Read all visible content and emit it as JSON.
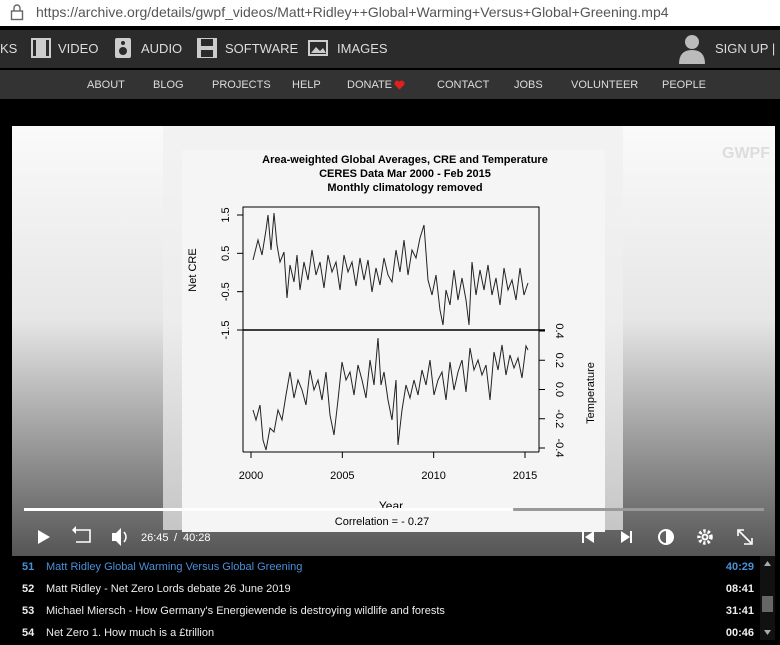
{
  "browser": {
    "url": "https://archive.org/details/gwpf_videos/Matt+Ridley++Global+Warming+Versus+Global+Greening.mp4"
  },
  "top_nav": {
    "items": [
      "KS",
      "VIDEO",
      "AUDIO",
      "SOFTWARE",
      "IMAGES"
    ],
    "sign_up": "SIGN UP |"
  },
  "sub_nav": {
    "items": [
      "ABOUT",
      "BLOG",
      "PROJECTS",
      "HELP",
      "DONATE",
      "CONTACT",
      "JOBS",
      "VOLUNTEER",
      "PEOPLE"
    ]
  },
  "video": {
    "watermark": "GWPF",
    "frame": {
      "title_lines": [
        "Area-weighted Global Averages, CRE and Temperature",
        "CERES Data Mar 2000 - Feb 2015",
        "Monthly climatology removed"
      ],
      "top_axis_label": "Net CRE",
      "top_yticks": [
        "1.5",
        "0.5",
        "-0.5",
        "-1.5"
      ],
      "bottom_axis_label": "Temperature",
      "bottom_yticks": [
        "0.4",
        "0.2",
        "0.0",
        "-0.2",
        "-0.4"
      ],
      "xticks": [
        "2000",
        "2005",
        "2010",
        "2015"
      ],
      "x_label": "Year",
      "footer": "Correlation = - 0.27"
    },
    "current_time": "26:45",
    "separator": "/",
    "duration": "40:28"
  },
  "playlist": [
    {
      "number": "51",
      "title": "Matt Ridley Global Warming Versus Global Greening",
      "duration": "40:29"
    },
    {
      "number": "52",
      "title": "Matt Ridley - Net Zero Lords debate 26 June 2019",
      "duration": "08:41"
    },
    {
      "number": "53",
      "title": "Michael Miersch - How Germany's Energiewende is destroying wildlife and forests",
      "duration": "31:41"
    },
    {
      "number": "54",
      "title": "Net Zero 1. How much is a £trillion",
      "duration": "00:46"
    }
  ]
}
